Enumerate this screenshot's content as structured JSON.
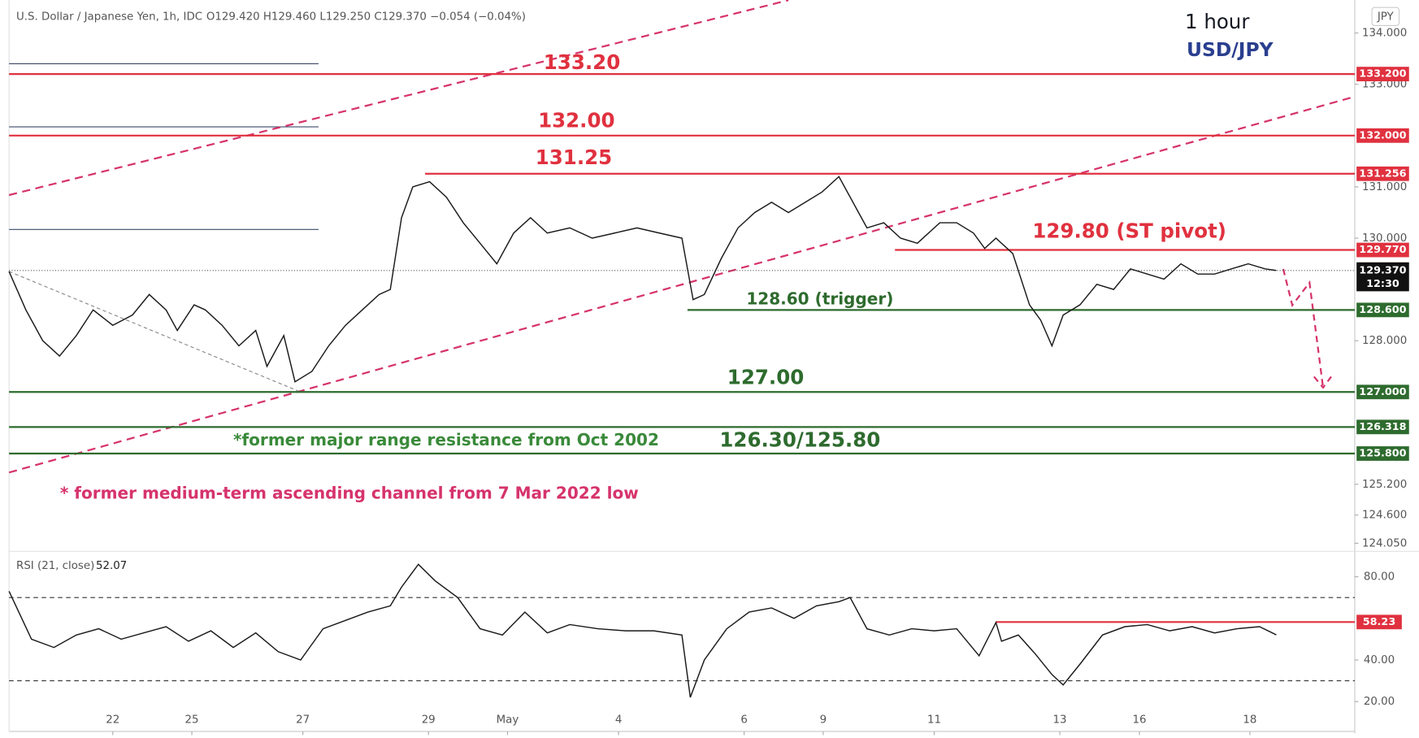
{
  "header": {
    "symbol_info": "U.S. Dollar / Japanese Yen, 1h, IDC",
    "ohlc": "O129.420  H129.460  L129.250  C129.370  −0.054 (−0.04%)",
    "timeframe": "1 hour",
    "pair": "USD/JPY"
  },
  "chart_data": [
    {
      "type": "line",
      "currency": "JPY",
      "color": "#1a1a1a",
      "grid": false,
      "xlim": [
        0,
        24
      ],
      "ylim": [
        123.91,
        134.64
      ],
      "xticks": [
        {
          "value": 1.85,
          "label": "22"
        },
        {
          "value": 3.26,
          "label": "25"
        },
        {
          "value": 5.24,
          "label": "27"
        },
        {
          "value": 7.48,
          "label": "29"
        },
        {
          "value": 8.89,
          "label": "May"
        },
        {
          "value": 10.87,
          "label": "4"
        },
        {
          "value": 13.11,
          "label": "6"
        },
        {
          "value": 14.52,
          "label": "9"
        },
        {
          "value": 16.5,
          "label": "11"
        },
        {
          "value": 18.74,
          "label": "13"
        },
        {
          "value": 20.16,
          "label": "16"
        },
        {
          "value": 22.13,
          "label": "18"
        }
      ],
      "yticks": [
        {
          "value": 134,
          "label": "134.000"
        },
        {
          "value": 133,
          "label": "133.000"
        },
        {
          "value": 131,
          "label": "131.000"
        },
        {
          "value": 130,
          "label": "130.000"
        },
        {
          "value": 128,
          "label": "128.000"
        },
        {
          "value": 125.2,
          "label": "125.200"
        },
        {
          "value": 124.6,
          "label": "124.600"
        },
        {
          "value": 124.05,
          "label": "124.050"
        }
      ],
      "x": [
        0,
        0.3,
        0.6,
        0.9,
        1.2,
        1.5,
        1.85,
        2.2,
        2.5,
        2.8,
        3.0,
        3.3,
        3.5,
        3.8,
        4.1,
        4.4,
        4.6,
        4.9,
        5.1,
        5.4,
        5.7,
        6.0,
        6.3,
        6.6,
        6.8,
        7.0,
        7.2,
        7.5,
        7.8,
        8.1,
        8.4,
        8.7,
        9.0,
        9.3,
        9.6,
        10.0,
        10.4,
        10.8,
        11.2,
        11.6,
        12.0,
        12.2,
        12.4,
        12.7,
        13.0,
        13.3,
        13.6,
        13.9,
        14.2,
        14.5,
        14.8,
        15.1,
        15.3,
        15.6,
        15.9,
        16.2,
        16.6,
        16.9,
        17.2,
        17.4,
        17.6,
        17.9,
        18.2,
        18.4,
        18.6,
        18.8,
        19.1,
        19.4,
        19.7,
        20.0,
        20.3,
        20.6,
        20.9,
        21.2,
        21.5,
        21.8,
        22.1,
        22.4,
        22.6
      ],
      "values": [
        129.35,
        128.6,
        128.0,
        127.7,
        128.1,
        128.6,
        128.3,
        128.5,
        128.9,
        128.6,
        128.2,
        128.7,
        128.6,
        128.3,
        127.9,
        128.2,
        127.5,
        128.1,
        127.2,
        127.4,
        127.9,
        128.3,
        128.6,
        128.9,
        129.0,
        130.4,
        131.0,
        131.1,
        130.8,
        130.3,
        129.9,
        129.5,
        130.1,
        130.4,
        130.1,
        130.2,
        130.0,
        130.1,
        130.2,
        130.1,
        130.0,
        128.8,
        128.9,
        129.6,
        130.2,
        130.5,
        130.7,
        130.5,
        130.7,
        130.9,
        131.2,
        130.6,
        130.2,
        130.3,
        130.0,
        129.9,
        130.3,
        130.3,
        130.1,
        129.8,
        130.0,
        129.7,
        128.7,
        128.4,
        127.9,
        128.5,
        128.7,
        129.1,
        129.0,
        129.4,
        129.3,
        129.2,
        129.5,
        129.3,
        129.3,
        129.4,
        129.5,
        129.4,
        129.37
      ],
      "last_price": {
        "value": 129.37,
        "label": "129.370",
        "countdown": "12:30"
      },
      "levels": [
        {
          "value": 133.2,
          "badge": "133.200",
          "color": "#e0313f",
          "x_start": 0
        },
        {
          "value": 132,
          "badge": "132.000",
          "color": "#e0313f",
          "x_start": 0
        },
        {
          "value": 131.256,
          "badge": "131.256",
          "color": "#e0313f",
          "x_start": 7.42
        },
        {
          "value": 129.77,
          "badge": "129.770",
          "color": "#e0313f",
          "x_start": 15.8
        },
        {
          "value": 128.6,
          "badge": "128.600",
          "color": "#2e6b2e",
          "x_start": 12.1
        },
        {
          "value": 127,
          "badge": "127.000",
          "color": "#2e6b2e",
          "x_start": 0
        },
        {
          "value": 126.318,
          "badge": "126.318",
          "color": "#2e6b2e",
          "x_start": 0
        },
        {
          "value": 125.8,
          "badge": "125.800",
          "color": "#2e6b2e",
          "x_start": 0
        }
      ],
      "range_lines": [
        {
          "value": 133.4,
          "x_start": 0,
          "x_end": 5.52
        },
        {
          "value": 132.17,
          "x_start": 0,
          "x_end": 5.52
        },
        {
          "value": 130.17,
          "x_start": 0,
          "x_end": 5.52
        }
      ],
      "trendlines": [
        {
          "color": "#d6336c",
          "points": [
            [
              0,
              130.84
            ],
            [
              13.9,
              134.64
            ]
          ]
        },
        {
          "color": "#d6336c",
          "points": [
            [
              0,
              125.43
            ],
            [
              24,
              132.76
            ]
          ]
        },
        {
          "color": "#888888",
          "points": [
            [
              0,
              129.35
            ],
            [
              5.2,
              127.0
            ]
          ]
        }
      ],
      "annotations": [
        {
          "text": "133.20",
          "color": "#e0313f"
        },
        {
          "text": "132.00",
          "color": "#e0313f"
        },
        {
          "text": "131.25",
          "color": "#e0313f"
        },
        {
          "text": "129.80 (ST pivot)",
          "color": "#e0313f"
        },
        {
          "text": "128.60 (trigger)",
          "color": "#2e6b2e"
        },
        {
          "text": "127.00",
          "color": "#2e6b2e"
        },
        {
          "text": "126.30/125.80",
          "color": "#2e6b2e"
        },
        {
          "text": "*former major range resistance from Oct 2002",
          "color": "#3a8a3a"
        },
        {
          "text": "* former medium-term ascending channel from 7 Mar 2022 low",
          "color": "#d6336c"
        }
      ]
    },
    {
      "type": "line",
      "title": "RSI (21, close)",
      "last_label": "52.07",
      "color": "#1a1a1a",
      "xlim": [
        0,
        24
      ],
      "ylim": [
        17.8,
        90.9
      ],
      "yticks": [
        {
          "value": 80,
          "label": "80.00"
        },
        {
          "value": 40,
          "label": "40.00"
        },
        {
          "value": 20,
          "label": "20.00"
        }
      ],
      "bands": [
        70,
        30
      ],
      "level": {
        "value": 58.23,
        "badge": "58.23",
        "color": "#e0313f",
        "x_start": 17.6
      },
      "x": [
        0,
        0.4,
        0.8,
        1.2,
        1.6,
        2.0,
        2.4,
        2.8,
        3.2,
        3.6,
        4.0,
        4.4,
        4.8,
        5.2,
        5.6,
        6.0,
        6.4,
        6.8,
        7.0,
        7.3,
        7.6,
        8.0,
        8.4,
        8.8,
        9.2,
        9.6,
        10.0,
        10.5,
        11.0,
        11.5,
        12.0,
        12.15,
        12.4,
        12.8,
        13.2,
        13.6,
        14.0,
        14.4,
        14.8,
        15.0,
        15.3,
        15.7,
        16.1,
        16.5,
        16.9,
        17.3,
        17.6,
        17.7,
        18.0,
        18.3,
        18.6,
        18.8,
        19.1,
        19.5,
        19.9,
        20.3,
        20.7,
        21.1,
        21.5,
        21.9,
        22.3,
        22.6
      ],
      "values": [
        73,
        50,
        46,
        52,
        55,
        50,
        53,
        56,
        49,
        54,
        46,
        53,
        44,
        40,
        55,
        59,
        63,
        66,
        75,
        86,
        78,
        70,
        55,
        52,
        63,
        53,
        57,
        55,
        54,
        54,
        52,
        22,
        40,
        55,
        63,
        65,
        60,
        66,
        68,
        70,
        55,
        52,
        55,
        54,
        55,
        42,
        58,
        49,
        52,
        43,
        33,
        28,
        38,
        52,
        56,
        57,
        54,
        56,
        53,
        55,
        56,
        52.07
      ]
    }
  ]
}
